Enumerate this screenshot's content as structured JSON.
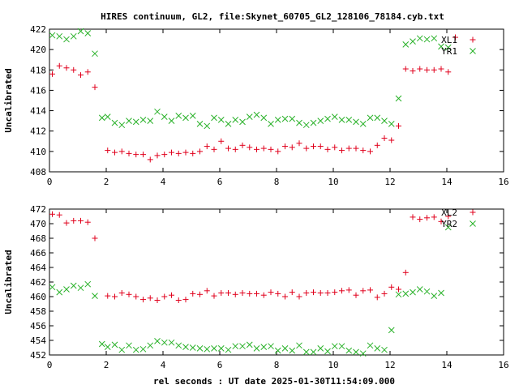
{
  "title": "HIRES continuum, GL2, file:Skynet_60705_GL2_128106_78184.cyb.txt",
  "xlabel": "rel seconds : UT date 2025-01-30T11:54:09.000",
  "colors": {
    "red": "#e0001c",
    "green": "#26b026",
    "axis": "#000000"
  },
  "chart_data": [
    {
      "type": "scatter",
      "ylabel": "Uncalibrated",
      "xlim": [
        0,
        16
      ],
      "ylim": [
        408,
        422
      ],
      "xticks": [
        0,
        2,
        4,
        6,
        8,
        10,
        12,
        14,
        16
      ],
      "yticks": [
        408,
        410,
        412,
        414,
        416,
        418,
        420,
        422
      ],
      "grid": false,
      "legend": "top-right",
      "series": [
        {
          "name": "XL1",
          "marker": "plus",
          "color": "#e0001c",
          "x": [
            0.1,
            0.35,
            0.6,
            0.85,
            1.1,
            1.35,
            1.6,
            1.85,
            2.05,
            2.3,
            2.55,
            2.8,
            3.05,
            3.3,
            3.55,
            3.8,
            4.05,
            4.3,
            4.55,
            4.8,
            5.05,
            5.3,
            5.55,
            5.8,
            6.05,
            6.3,
            6.55,
            6.8,
            7.05,
            7.3,
            7.55,
            7.8,
            8.05,
            8.3,
            8.55,
            8.8,
            9.05,
            9.3,
            9.55,
            9.8,
            10.05,
            10.3,
            10.55,
            10.8,
            11.05,
            11.3,
            11.55,
            11.8,
            12.05,
            12.3,
            12.55,
            12.8,
            13.05,
            13.3,
            13.55,
            13.8,
            14.05,
            14.3,
            14.55,
            14.8,
            15.05
          ],
          "y": [
            417.6,
            418.4,
            418.2,
            418.0,
            417.5,
            417.8,
            416.3,
            null,
            410.1,
            409.9,
            410.0,
            409.8,
            409.7,
            409.7,
            409.2,
            409.6,
            409.7,
            409.9,
            409.8,
            409.9,
            409.8,
            410.0,
            410.5,
            410.2,
            411.0,
            410.3,
            410.2,
            410.6,
            410.4,
            410.2,
            410.3,
            410.2,
            410.0,
            410.5,
            410.4,
            410.8,
            410.3,
            410.5,
            410.5,
            410.2,
            410.4,
            410.1,
            410.3,
            410.3,
            410.1,
            410.0,
            410.6,
            411.3,
            411.1,
            412.5,
            418.1,
            417.9,
            418.1,
            418.0,
            418.0,
            418.1,
            417.8,
            421.2,
            null,
            null,
            null
          ]
        },
        {
          "name": "YR1",
          "marker": "cross",
          "color": "#26b026",
          "x": [
            0.1,
            0.35,
            0.6,
            0.85,
            1.1,
            1.35,
            1.6,
            1.85,
            2.05,
            2.3,
            2.55,
            2.8,
            3.05,
            3.3,
            3.55,
            3.8,
            4.05,
            4.3,
            4.55,
            4.8,
            5.05,
            5.3,
            5.55,
            5.8,
            6.05,
            6.3,
            6.55,
            6.8,
            7.05,
            7.3,
            7.55,
            7.8,
            8.05,
            8.3,
            8.55,
            8.8,
            9.05,
            9.3,
            9.55,
            9.8,
            10.05,
            10.3,
            10.55,
            10.8,
            11.05,
            11.3,
            11.55,
            11.8,
            12.05,
            12.3,
            12.55,
            12.8,
            13.05,
            13.3,
            13.55,
            13.8,
            14.05,
            14.3,
            14.55,
            14.8,
            15.05
          ],
          "y": [
            421.4,
            421.3,
            421.0,
            421.3,
            421.8,
            421.6,
            419.6,
            413.3,
            413.4,
            412.8,
            412.6,
            413.0,
            412.9,
            413.1,
            413.0,
            413.9,
            413.4,
            413.0,
            413.5,
            413.3,
            413.5,
            412.7,
            412.5,
            413.3,
            413.1,
            412.7,
            413.1,
            412.9,
            413.4,
            413.6,
            413.3,
            412.7,
            413.1,
            413.2,
            413.2,
            412.8,
            412.6,
            412.8,
            413.0,
            413.2,
            413.4,
            413.1,
            413.1,
            412.9,
            412.7,
            413.3,
            413.3,
            413.0,
            412.7,
            415.2,
            420.5,
            420.8,
            421.1,
            421.0,
            421.1,
            420.3,
            420.2,
            null,
            null,
            null,
            null
          ]
        }
      ]
    },
    {
      "type": "scatter",
      "ylabel": "Uncalibrated",
      "xlim": [
        0,
        16
      ],
      "ylim": [
        452,
        472
      ],
      "xticks": [
        0,
        2,
        4,
        6,
        8,
        10,
        12,
        14,
        16
      ],
      "yticks": [
        452,
        454,
        456,
        458,
        460,
        462,
        464,
        466,
        468,
        470,
        472
      ],
      "grid": false,
      "legend": "top-right",
      "series": [
        {
          "name": "XL2",
          "marker": "plus",
          "color": "#e0001c",
          "x": [
            0.1,
            0.35,
            0.6,
            0.85,
            1.1,
            1.35,
            1.6,
            1.85,
            2.05,
            2.3,
            2.55,
            2.8,
            3.05,
            3.3,
            3.55,
            3.8,
            4.05,
            4.3,
            4.55,
            4.8,
            5.05,
            5.3,
            5.55,
            5.8,
            6.05,
            6.3,
            6.55,
            6.8,
            7.05,
            7.3,
            7.55,
            7.8,
            8.05,
            8.3,
            8.55,
            8.8,
            9.05,
            9.3,
            9.55,
            9.8,
            10.05,
            10.3,
            10.55,
            10.8,
            11.05,
            11.3,
            11.55,
            11.8,
            12.05,
            12.3,
            12.55,
            12.8,
            13.05,
            13.3,
            13.55,
            13.8,
            14.05,
            14.3,
            14.55,
            14.8,
            15.05
          ],
          "y": [
            471.3,
            471.2,
            470.1,
            470.4,
            470.4,
            470.2,
            468.0,
            null,
            460.1,
            460.0,
            460.5,
            460.3,
            460.0,
            459.6,
            459.8,
            459.5,
            460.0,
            460.2,
            459.5,
            459.6,
            460.4,
            460.3,
            460.8,
            460.1,
            460.5,
            460.5,
            460.3,
            460.5,
            460.4,
            460.4,
            460.2,
            460.6,
            460.4,
            460.0,
            460.6,
            460.0,
            460.5,
            460.6,
            460.5,
            460.5,
            460.6,
            460.8,
            460.9,
            460.2,
            460.8,
            460.9,
            459.9,
            460.4,
            461.3,
            461.0,
            463.3,
            470.9,
            470.6,
            470.8,
            470.9,
            470.3,
            471.0,
            null,
            null,
            null,
            null
          ]
        },
        {
          "name": "YR2",
          "marker": "cross",
          "color": "#26b026",
          "x": [
            0.1,
            0.35,
            0.6,
            0.85,
            1.1,
            1.35,
            1.6,
            1.85,
            2.05,
            2.3,
            2.55,
            2.8,
            3.05,
            3.3,
            3.55,
            3.8,
            4.05,
            4.3,
            4.55,
            4.8,
            5.05,
            5.3,
            5.55,
            5.8,
            6.05,
            6.3,
            6.55,
            6.8,
            7.05,
            7.3,
            7.55,
            7.8,
            8.05,
            8.3,
            8.55,
            8.8,
            9.05,
            9.3,
            9.55,
            9.8,
            10.05,
            10.3,
            10.55,
            10.8,
            11.05,
            11.3,
            11.55,
            11.8,
            12.05,
            12.3,
            12.55,
            12.8,
            13.05,
            13.3,
            13.55,
            13.8,
            14.05,
            14.3,
            14.55,
            14.8,
            15.05
          ],
          "y": [
            461.3,
            460.6,
            461.0,
            461.5,
            461.2,
            461.7,
            460.1,
            453.5,
            453.1,
            453.4,
            452.7,
            453.3,
            452.7,
            452.8,
            453.3,
            453.9,
            453.7,
            453.7,
            453.3,
            453.1,
            453.0,
            452.9,
            452.8,
            452.9,
            452.9,
            452.7,
            453.2,
            453.2,
            453.4,
            452.9,
            453.1,
            453.2,
            452.6,
            452.9,
            452.6,
            453.3,
            452.4,
            452.4,
            452.9,
            452.5,
            453.2,
            453.2,
            452.6,
            452.4,
            452.2,
            453.3,
            452.9,
            452.7,
            455.4,
            460.3,
            460.4,
            460.6,
            461.0,
            460.7,
            460.1,
            460.5,
            469.5,
            null,
            null,
            null,
            null
          ]
        }
      ]
    }
  ]
}
